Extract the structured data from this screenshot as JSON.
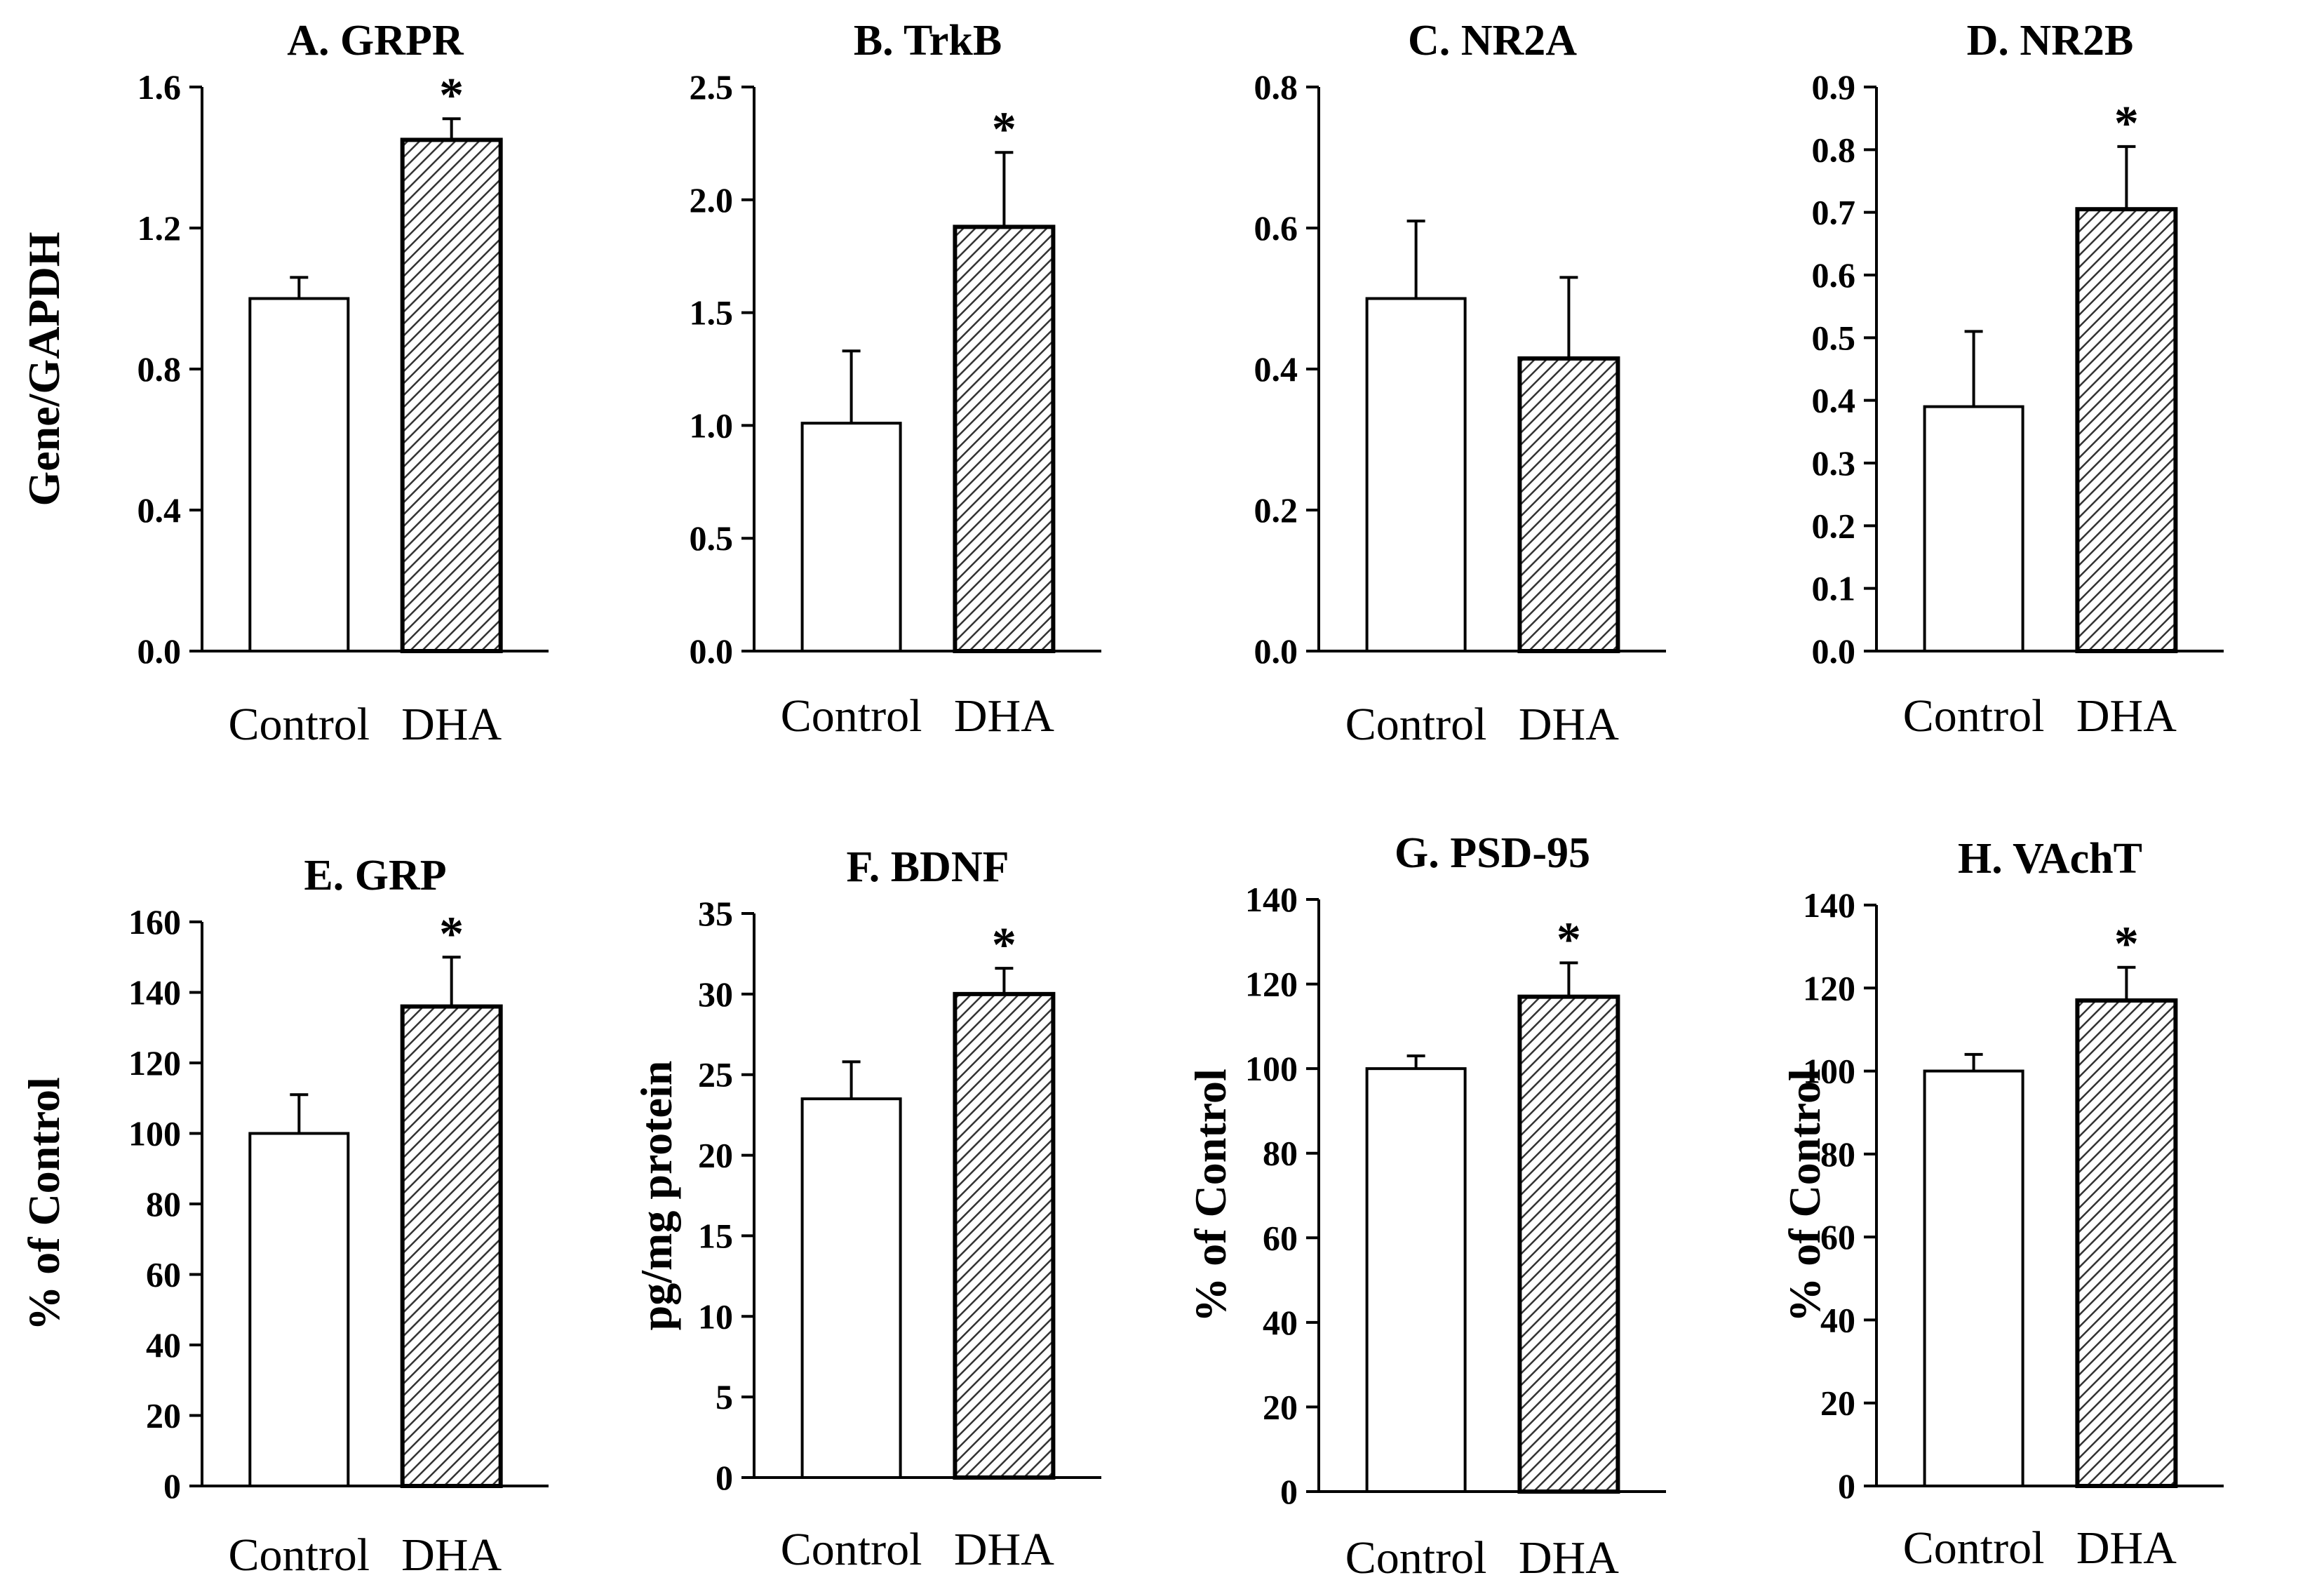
{
  "colors": {
    "control_fill": "#ffffff",
    "dha_pattern": "#333333",
    "axis": "#000000"
  },
  "chart_data": [
    {
      "id": "A",
      "type": "bar",
      "title": "A. GRPR",
      "ylabel": "Gene/GAPDH",
      "categories": [
        "Control",
        "DHA"
      ],
      "values": [
        1.0,
        1.45
      ],
      "errors": [
        0.06,
        0.06
      ],
      "significant": [
        false,
        true
      ],
      "significance_marker": "*",
      "ylim": [
        0,
        1.6
      ],
      "yticks": [
        "0.0",
        "0.4",
        "0.8",
        "1.2",
        "1.6"
      ]
    },
    {
      "id": "B",
      "type": "bar",
      "title": "B. TrkB",
      "ylabel": "",
      "categories": [
        "Control",
        "DHA"
      ],
      "values": [
        1.01,
        1.88
      ],
      "errors": [
        0.32,
        0.33
      ],
      "significant": [
        false,
        true
      ],
      "significance_marker": "*",
      "ylim": [
        0,
        2.5
      ],
      "yticks": [
        "0.0",
        "0.5",
        "1.0",
        "1.5",
        "2.0",
        "2.5"
      ]
    },
    {
      "id": "C",
      "type": "bar",
      "title": "C. NR2A",
      "ylabel": "",
      "categories": [
        "Control",
        "DHA"
      ],
      "values": [
        0.5,
        0.415
      ],
      "errors": [
        0.11,
        0.115
      ],
      "significant": [
        false,
        false
      ],
      "significance_marker": "*",
      "ylim": [
        0,
        0.8
      ],
      "yticks": [
        "0.0",
        "0.2",
        "0.4",
        "0.6",
        "0.8"
      ]
    },
    {
      "id": "D",
      "type": "bar",
      "title": "D. NR2B",
      "ylabel": "",
      "categories": [
        "Control",
        "DHA"
      ],
      "values": [
        0.39,
        0.705
      ],
      "errors": [
        0.12,
        0.1
      ],
      "significant": [
        false,
        true
      ],
      "significance_marker": "*",
      "ylim": [
        0,
        0.9
      ],
      "yticks": [
        "0.0",
        "0.1",
        "0.2",
        "0.3",
        "0.4",
        "0.5",
        "0.6",
        "0.7",
        "0.8",
        "0.9"
      ]
    },
    {
      "id": "E",
      "type": "bar",
      "title": "E. GRP",
      "ylabel": "% of Control",
      "categories": [
        "Control",
        "DHA"
      ],
      "values": [
        100,
        136
      ],
      "errors": [
        11,
        14
      ],
      "significant": [
        false,
        true
      ],
      "significance_marker": "*",
      "ylim": [
        0,
        160
      ],
      "yticks": [
        "0",
        "20",
        "40",
        "60",
        "80",
        "100",
        "120",
        "140",
        "160"
      ]
    },
    {
      "id": "F",
      "type": "bar",
      "title": "F.  BDNF",
      "ylabel": "pg/mg protein",
      "categories": [
        "Control",
        "DHA"
      ],
      "values": [
        23.5,
        30
      ],
      "errors": [
        2.3,
        1.6
      ],
      "significant": [
        false,
        true
      ],
      "significance_marker": "*",
      "ylim": [
        0,
        35
      ],
      "yticks": [
        "0",
        "5",
        "10",
        "15",
        "20",
        "25",
        "30",
        "35"
      ]
    },
    {
      "id": "G",
      "type": "bar",
      "title": "G.  PSD-95",
      "ylabel": "% of Control",
      "categories": [
        "Control",
        "DHA"
      ],
      "values": [
        100,
        117
      ],
      "errors": [
        3,
        8
      ],
      "significant": [
        false,
        true
      ],
      "significance_marker": "*",
      "ylim": [
        0,
        140
      ],
      "yticks": [
        "0",
        "20",
        "40",
        "60",
        "80",
        "100",
        "120",
        "140"
      ]
    },
    {
      "id": "H",
      "type": "bar",
      "title": "H. VAchT",
      "ylabel": "% of Control",
      "categories": [
        "Control",
        "DHA"
      ],
      "values": [
        100,
        117
      ],
      "errors": [
        4,
        8
      ],
      "significant": [
        false,
        true
      ],
      "significance_marker": "*",
      "ylim": [
        0,
        140
      ],
      "yticks": [
        "0",
        "20",
        "40",
        "60",
        "80",
        "100",
        "120",
        "140"
      ]
    }
  ]
}
